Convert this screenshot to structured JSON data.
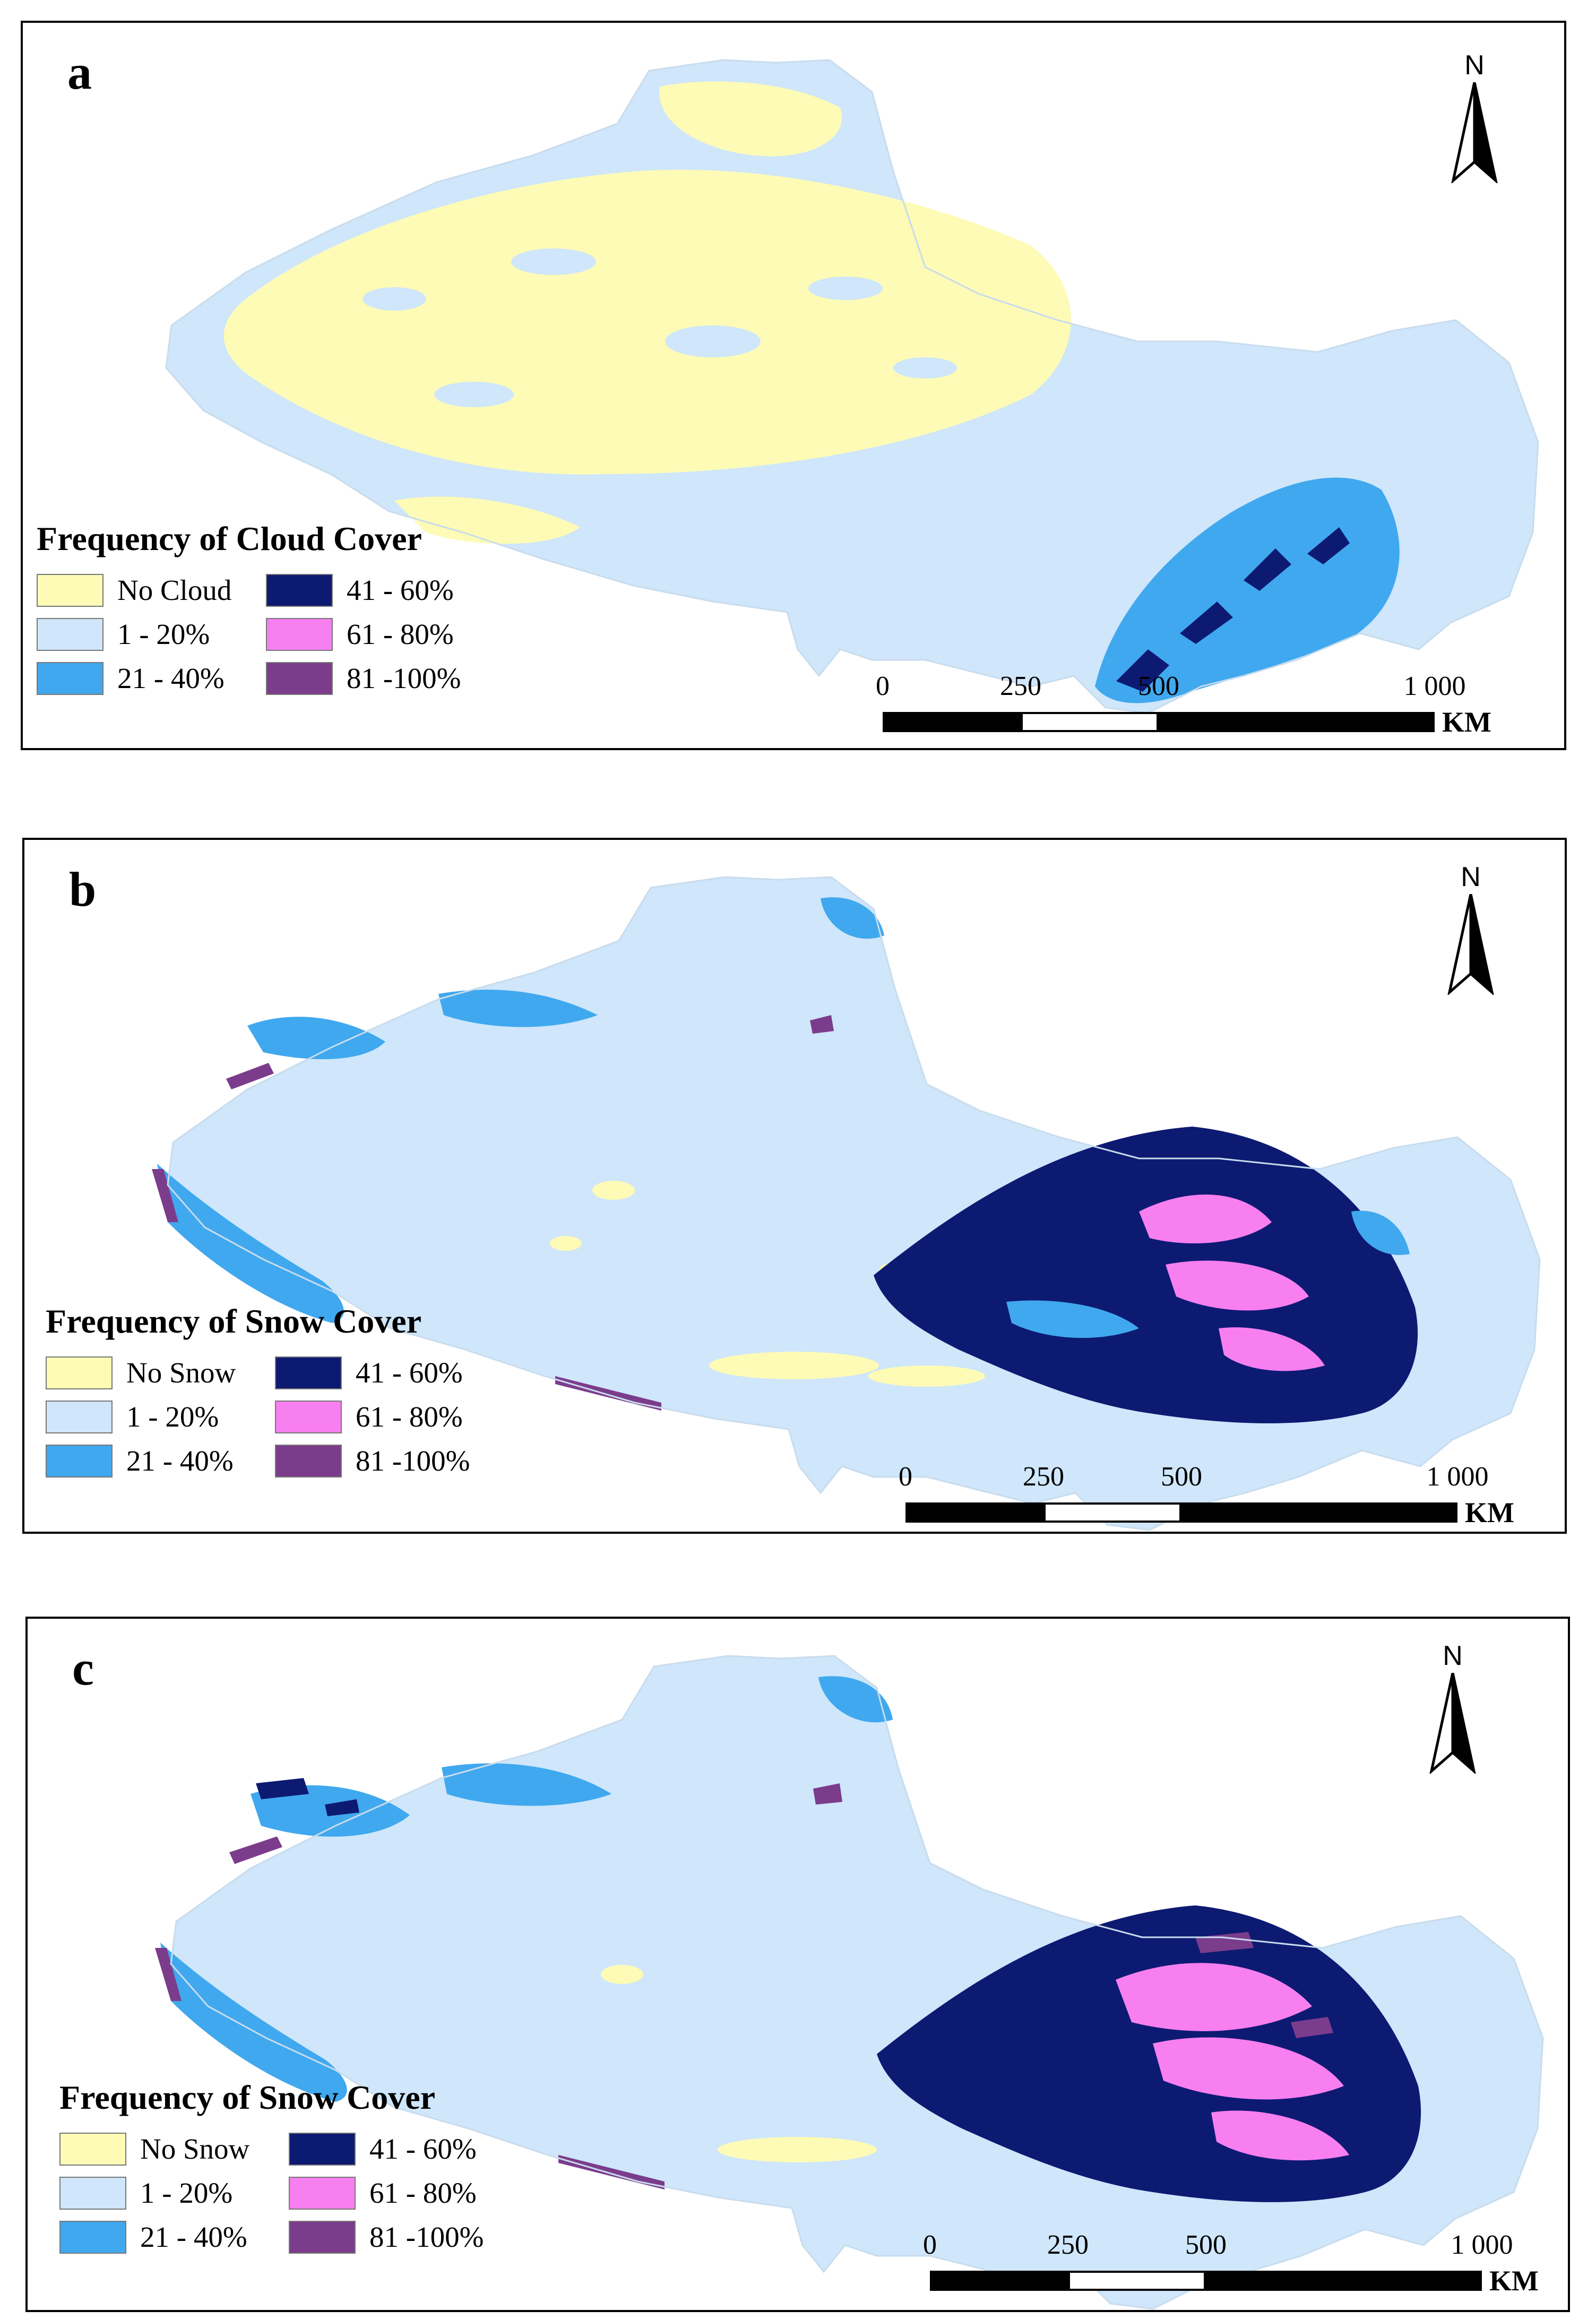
{
  "figure": {
    "colors": {
      "class0": "#fdfbb6",
      "class1": "#cfe6fb",
      "class2": "#40a8ee",
      "class3": "#0d1a72",
      "class4": "#f77ff0",
      "class5": "#7c3c8c"
    },
    "panels": [
      {
        "label": "a",
        "legend_title": "Frequency of Cloud Cover",
        "legend_items": [
          {
            "label": "No Cloud",
            "color": "#fdfbb6"
          },
          {
            "label": "1 - 20%",
            "color": "#cfe6fb"
          },
          {
            "label": "21 - 40%",
            "color": "#40a8ee"
          },
          {
            "label": "41 - 60%",
            "color": "#0d1a72"
          },
          {
            "label": "61 - 80%",
            "color": "#f77ff0"
          },
          {
            "label": "81 -100%",
            "color": "#7c3c8c"
          }
        ],
        "north_label": "N",
        "scale_ticks": [
          "0",
          "250",
          "500",
          "1 000"
        ],
        "scale_unit": "KM"
      },
      {
        "label": "b",
        "legend_title": "Frequency of Snow Cover",
        "legend_items": [
          {
            "label": "No Snow",
            "color": "#fdfbb6"
          },
          {
            "label": "1 - 20%",
            "color": "#cfe6fb"
          },
          {
            "label": "21 - 40%",
            "color": "#40a8ee"
          },
          {
            "label": "41 - 60%",
            "color": "#0d1a72"
          },
          {
            "label": "61 - 80%",
            "color": "#f77ff0"
          },
          {
            "label": "81 -100%",
            "color": "#7c3c8c"
          }
        ],
        "north_label": "N",
        "scale_ticks": [
          "0",
          "250",
          "500",
          "1 000"
        ],
        "scale_unit": "KM"
      },
      {
        "label": "c",
        "legend_title": "Frequency of Snow Cover",
        "legend_items": [
          {
            "label": "No Snow",
            "color": "#fdfbb6"
          },
          {
            "label": "1 - 20%",
            "color": "#cfe6fb"
          },
          {
            "label": "21 - 40%",
            "color": "#40a8ee"
          },
          {
            "label": "41 - 60%",
            "color": "#0d1a72"
          },
          {
            "label": "61 - 80%",
            "color": "#f77ff0"
          },
          {
            "label": "81 -100%",
            "color": "#7c3c8c"
          }
        ],
        "north_label": "N",
        "scale_ticks": [
          "0",
          "250",
          "500",
          "1 000"
        ],
        "scale_unit": "KM"
      }
    ]
  }
}
